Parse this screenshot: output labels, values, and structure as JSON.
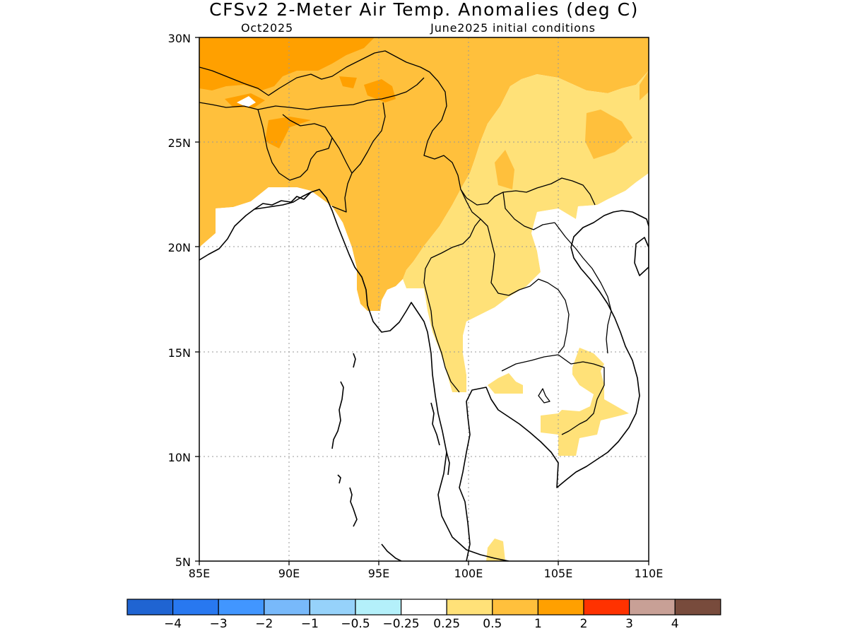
{
  "title": "CFSv2 2-Meter Air Temp. Anomalies (deg C)",
  "subtitle_left": "Oct2025",
  "subtitle_right": "June2025 initial conditions",
  "axes": {
    "lon_labels": [
      "85E",
      "90E",
      "95E",
      "100E",
      "105E",
      "110E"
    ],
    "lat_labels": [
      "30N",
      "25N",
      "20N",
      "15N",
      "10N",
      "5N"
    ],
    "lon_range": [
      85,
      110
    ],
    "lat_range": [
      5,
      30
    ],
    "grid": true
  },
  "colorbar": {
    "colors": [
      "#1f64d2",
      "#2878f0",
      "#4196ff",
      "#78b9fa",
      "#96d2fa",
      "#b4f0fa",
      "#ffffff",
      "#ffe178",
      "#ffc03c",
      "#ffa000",
      "#ff3200",
      "#c8a096",
      "#784b3c"
    ],
    "labels": [
      "-4",
      "-3",
      "-2",
      "-1",
      "-0.5",
      "-0.25",
      "0.25",
      "0.5",
      "1",
      "2",
      "3",
      "4"
    ]
  },
  "legend_colors": {
    "anomaly_0_25_to_0_5": "#ffe178",
    "anomaly_0_5_to_1": "#ffc03c",
    "anomaly_1_to_2": "#ffa000",
    "anomaly_below_0_25": "#ffffff"
  }
}
